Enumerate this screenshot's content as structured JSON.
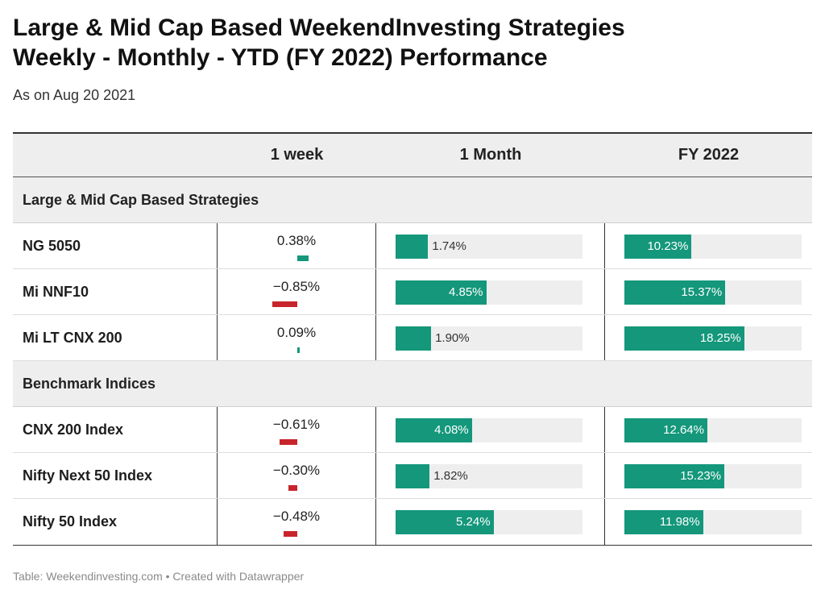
{
  "title_line1": "Large & Mid Cap Based WeekendInvesting Strategies",
  "title_line2": "Weekly - Monthly - YTD (FY 2022) Performance",
  "subtitle": "As on Aug 20 2021",
  "footer": "Table: Weekendinvesting.com • Created with Datawrapper",
  "colors": {
    "positive": "#14977b",
    "negative": "#c8242b",
    "track": "#eeeeee"
  },
  "chart_data": {
    "type": "table",
    "columns": [
      "",
      "1 week",
      "1 Month",
      "FY 2022"
    ],
    "groups": [
      {
        "name": "Large & Mid Cap Based Strategies",
        "rows": [
          {
            "name": "NG 5050",
            "week": 0.38,
            "week_label": "0.38%",
            "month": 1.74,
            "month_label": "1.74%",
            "fy": 10.23,
            "fy_label": "10.23%"
          },
          {
            "name": "Mi NNF10",
            "week": -0.85,
            "week_label": "−0.85%",
            "month": 4.85,
            "month_label": "4.85%",
            "fy": 15.37,
            "fy_label": "15.37%"
          },
          {
            "name": "Mi LT CNX 200",
            "week": 0.09,
            "week_label": "0.09%",
            "month": 1.9,
            "month_label": "1.90%",
            "fy": 18.25,
            "fy_label": "18.25%"
          }
        ]
      },
      {
        "name": "Benchmark Indices",
        "rows": [
          {
            "name": "CNX 200 Index",
            "week": -0.61,
            "week_label": "−0.61%",
            "month": 4.08,
            "month_label": "4.08%",
            "fy": 12.64,
            "fy_label": "12.64%"
          },
          {
            "name": "Nifty Next 50 Index",
            "week": -0.3,
            "week_label": "−0.30%",
            "month": 1.82,
            "month_label": "1.82%",
            "fy": 15.23,
            "fy_label": "15.23%"
          },
          {
            "name": "Nifty 50 Index",
            "week": -0.48,
            "week_label": "−0.48%",
            "month": 5.24,
            "month_label": "5.24%",
            "fy": 11.98,
            "fy_label": "11.98%"
          }
        ]
      }
    ],
    "week_range": [
      -1,
      1
    ],
    "month_range": [
      0,
      10
    ],
    "fy_range": [
      0,
      27
    ]
  }
}
